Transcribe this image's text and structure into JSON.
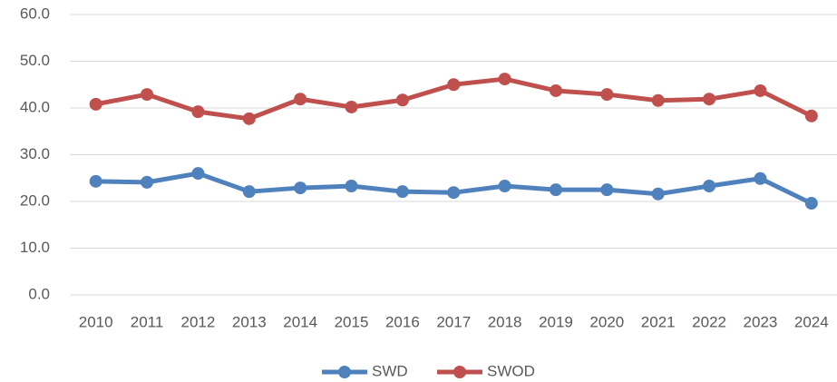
{
  "chart_data": {
    "type": "line",
    "categories": [
      "2010",
      "2011",
      "2012",
      "2013",
      "2014",
      "2015",
      "2016",
      "2017",
      "2018",
      "2019",
      "2020",
      "2021",
      "2022",
      "2023",
      "2024"
    ],
    "series": [
      {
        "name": "SWD",
        "color": "#4f81bd",
        "values": [
          24.3,
          24.1,
          26.0,
          22.1,
          22.9,
          23.3,
          22.1,
          21.9,
          23.3,
          22.5,
          22.5,
          21.6,
          23.3,
          24.9,
          19.6
        ]
      },
      {
        "name": "SWOD",
        "color": "#c0504d",
        "values": [
          40.8,
          42.9,
          39.2,
          37.7,
          41.9,
          40.2,
          41.7,
          45.0,
          46.2,
          43.7,
          42.9,
          41.6,
          41.9,
          43.7,
          38.3
        ]
      }
    ],
    "ylim": [
      0,
      60
    ],
    "yticks": [
      {
        "value": 0,
        "label": "0.0"
      },
      {
        "value": 10,
        "label": "10.0"
      },
      {
        "value": 20,
        "label": "20.0"
      },
      {
        "value": 30,
        "label": "30.0"
      },
      {
        "value": 40,
        "label": "40.0"
      },
      {
        "value": 50,
        "label": "50.0"
      },
      {
        "value": 60,
        "label": "60.0"
      }
    ],
    "grid": true,
    "legend": "bottom"
  }
}
